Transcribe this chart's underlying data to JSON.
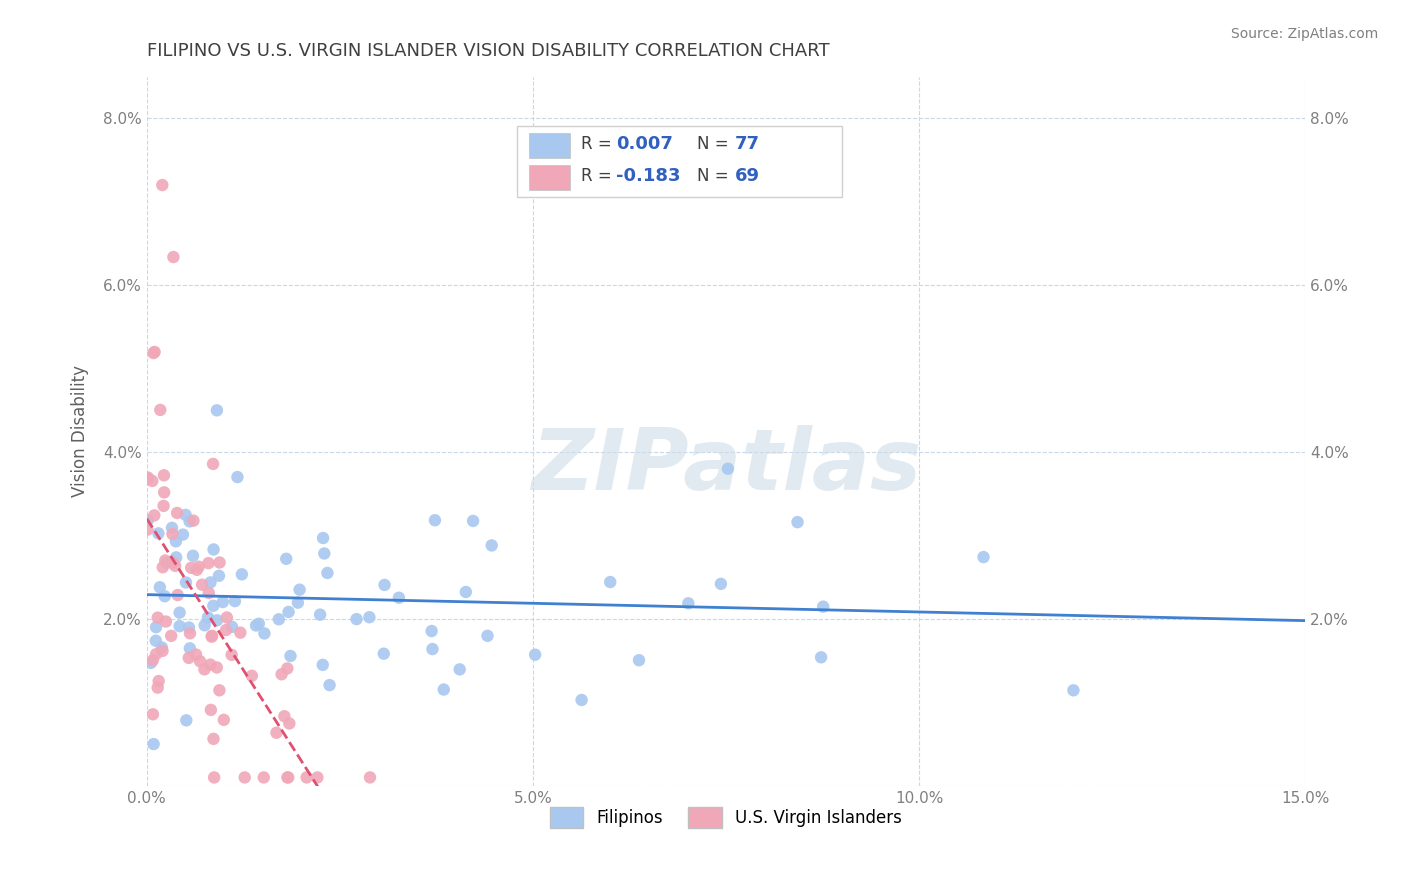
{
  "title": "FILIPINO VS U.S. VIRGIN ISLANDER VISION DISABILITY CORRELATION CHART",
  "source": "Source: ZipAtlas.com",
  "xlabel": "",
  "ylabel": "Vision Disability",
  "xlim": [
    0.0,
    0.15
  ],
  "ylim": [
    0.0,
    0.085
  ],
  "xticks": [
    0.0,
    0.05,
    0.1,
    0.15
  ],
  "yticks": [
    0.0,
    0.02,
    0.04,
    0.06,
    0.08
  ],
  "xticklabels": [
    "0.0%",
    "5.0%",
    "10.0%",
    "15.0%"
  ],
  "yticklabels": [
    "",
    "2.0%",
    "4.0%",
    "6.0%",
    "8.0%"
  ],
  "filipino_color": "#a8c8f0",
  "usvi_color": "#f0a8b8",
  "filipino_R": 0.007,
  "filipino_N": 77,
  "usvi_R": -0.183,
  "usvi_N": 69,
  "legend_labels": [
    "Filipinos",
    "U.S. Virgin Islanders"
  ],
  "watermark": "ZIPatlas",
  "background_color": "#ffffff",
  "grid_color": "#c8d8e8",
  "title_color": "#404040",
  "axis_label_color": "#606060",
  "tick_color": "#808080",
  "legend_R_color": "#3060c0",
  "legend_N_color": "#3060c0"
}
